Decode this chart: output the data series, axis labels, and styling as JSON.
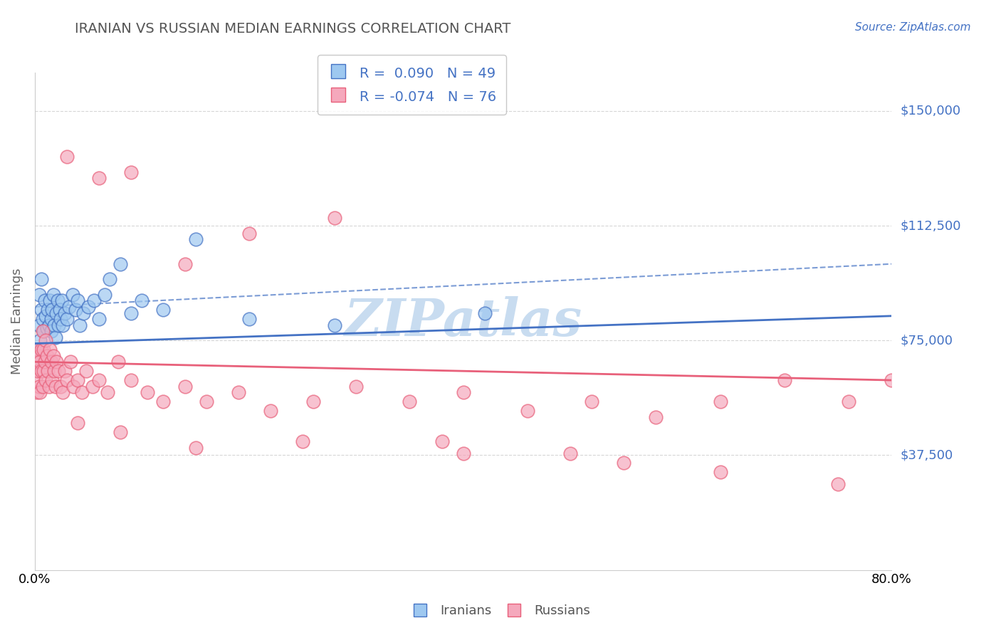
{
  "title": "IRANIAN VS RUSSIAN MEDIAN EARNINGS CORRELATION CHART",
  "source_text": "Source: ZipAtlas.com",
  "ylabel": "Median Earnings",
  "xlim": [
    0.0,
    0.8
  ],
  "ylim": [
    0,
    162500
  ],
  "yticks": [
    0,
    37500,
    75000,
    112500,
    150000
  ],
  "ytick_labels": [
    "",
    "$37,500",
    "$75,000",
    "$112,500",
    "$150,000"
  ],
  "xtick_labels": [
    "0.0%",
    "80.0%"
  ],
  "legend_iranians_R": "0.090",
  "legend_iranians_N": "49",
  "legend_russians_R": "-0.074",
  "legend_russians_N": "76",
  "color_iranians": "#9EC8F0",
  "color_russians": "#F5A8BC",
  "line_color_iranians": "#4472C4",
  "line_color_russians": "#E8607A",
  "ytick_color": "#4472C4",
  "grid_color": "#CCCCCC",
  "title_color": "#555555",
  "ylabel_color": "#666666",
  "source_color": "#4472C4",
  "watermark_color": "#C8DCF0",
  "iranians_x": [
    0.002,
    0.003,
    0.004,
    0.004,
    0.005,
    0.006,
    0.006,
    0.007,
    0.008,
    0.009,
    0.01,
    0.011,
    0.012,
    0.013,
    0.014,
    0.015,
    0.015,
    0.016,
    0.017,
    0.018,
    0.019,
    0.02,
    0.021,
    0.022,
    0.023,
    0.024,
    0.025,
    0.026,
    0.028,
    0.03,
    0.032,
    0.035,
    0.038,
    0.04,
    0.042,
    0.045,
    0.05,
    0.055,
    0.06,
    0.065,
    0.07,
    0.08,
    0.09,
    0.1,
    0.12,
    0.15,
    0.2,
    0.28,
    0.42
  ],
  "iranians_y": [
    68000,
    72000,
    80000,
    90000,
    75000,
    85000,
    95000,
    82000,
    78000,
    88000,
    83000,
    79000,
    85000,
    80000,
    88000,
    82000,
    78000,
    85000,
    90000,
    80000,
    76000,
    84000,
    88000,
    80000,
    85000,
    82000,
    88000,
    80000,
    84000,
    82000,
    86000,
    90000,
    85000,
    88000,
    80000,
    84000,
    86000,
    88000,
    82000,
    90000,
    95000,
    100000,
    84000,
    88000,
    85000,
    108000,
    82000,
    80000,
    84000
  ],
  "russians_x": [
    0.001,
    0.002,
    0.002,
    0.003,
    0.003,
    0.004,
    0.004,
    0.005,
    0.005,
    0.006,
    0.006,
    0.007,
    0.007,
    0.008,
    0.008,
    0.009,
    0.01,
    0.01,
    0.011,
    0.012,
    0.013,
    0.014,
    0.015,
    0.016,
    0.017,
    0.018,
    0.019,
    0.02,
    0.022,
    0.024,
    0.026,
    0.028,
    0.03,
    0.033,
    0.036,
    0.04,
    0.044,
    0.048,
    0.054,
    0.06,
    0.068,
    0.078,
    0.09,
    0.105,
    0.12,
    0.14,
    0.16,
    0.19,
    0.22,
    0.26,
    0.3,
    0.35,
    0.4,
    0.46,
    0.52,
    0.58,
    0.64,
    0.7,
    0.76,
    0.8,
    0.03,
    0.06,
    0.09,
    0.14,
    0.2,
    0.28,
    0.38,
    0.5,
    0.64,
    0.75,
    0.04,
    0.08,
    0.15,
    0.25,
    0.4,
    0.55
  ],
  "russians_y": [
    62000,
    68000,
    58000,
    65000,
    72000,
    60000,
    70000,
    58000,
    68000,
    65000,
    72000,
    60000,
    78000,
    65000,
    72000,
    68000,
    62000,
    75000,
    70000,
    65000,
    60000,
    72000,
    68000,
    62000,
    70000,
    65000,
    60000,
    68000,
    65000,
    60000,
    58000,
    65000,
    62000,
    68000,
    60000,
    62000,
    58000,
    65000,
    60000,
    62000,
    58000,
    68000,
    62000,
    58000,
    55000,
    60000,
    55000,
    58000,
    52000,
    55000,
    60000,
    55000,
    58000,
    52000,
    55000,
    50000,
    55000,
    62000,
    55000,
    62000,
    135000,
    128000,
    130000,
    100000,
    110000,
    115000,
    42000,
    38000,
    32000,
    28000,
    48000,
    45000,
    40000,
    42000,
    38000,
    35000
  ]
}
